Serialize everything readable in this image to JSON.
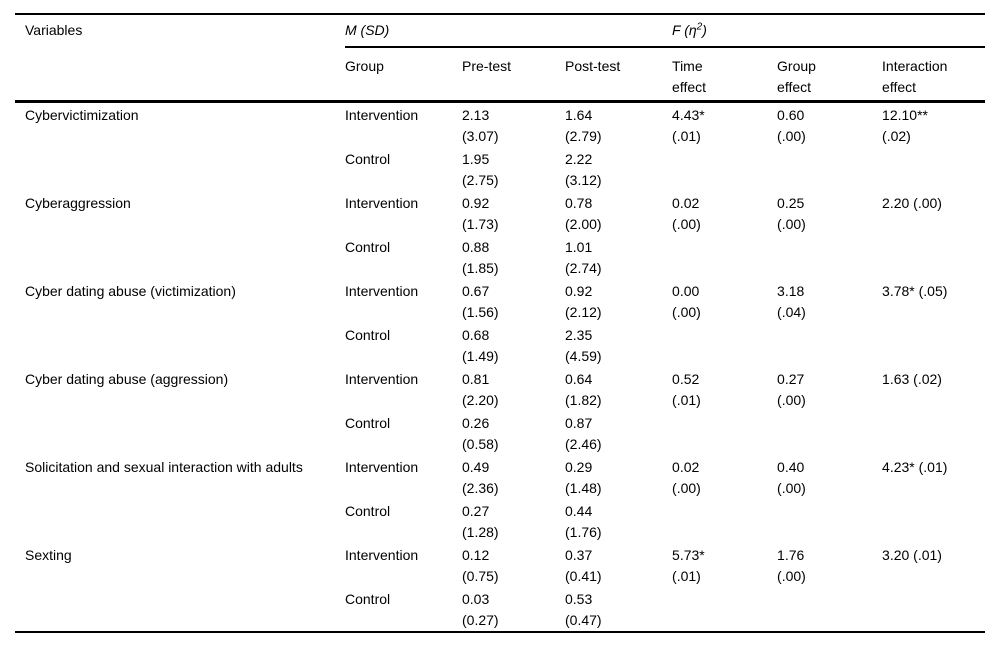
{
  "page": {
    "background": "#ffffff",
    "text_color": "#000000"
  },
  "table": {
    "variables_header": "Variables",
    "msd_header": "M (SD)",
    "f_header": {
      "pre": "F (η",
      "sup": "2",
      "post": ")"
    },
    "sub_headers": [
      {
        "line1": "Group",
        "line2": ""
      },
      {
        "line1": "Pre-test",
        "line2": ""
      },
      {
        "line1": "Post-test",
        "line2": ""
      },
      {
        "line1": "Time",
        "line2": "effect"
      },
      {
        "line1": "Group",
        "line2": "effect"
      },
      {
        "line1": "Interaction",
        "line2": "effect"
      }
    ],
    "rows": [
      {
        "variable": "Cybervictimization",
        "intervention": {
          "label": "Intervention",
          "pre_m": "2.13",
          "pre_sd": "(3.07)",
          "post_m": "1.64",
          "post_sd": "(2.79)"
        },
        "control": {
          "label": "Control",
          "pre_m": "1.95",
          "pre_sd": "(2.75)",
          "post_m": "2.22",
          "post_sd": "(3.12)"
        },
        "time": {
          "l1": "4.43*",
          "l2": "(.01)"
        },
        "group": {
          "l1": "0.60",
          "l2": "(.00)"
        },
        "interaction": {
          "l1": "12.10**",
          "l2": "(.02)"
        }
      },
      {
        "variable": "Cyberaggression",
        "intervention": {
          "label": "Intervention",
          "pre_m": "0.92",
          "pre_sd": "(1.73)",
          "post_m": "0.78",
          "post_sd": "(2.00)"
        },
        "control": {
          "label": "Control",
          "pre_m": "0.88",
          "pre_sd": "(1.85)",
          "post_m": "1.01",
          "post_sd": "(2.74)"
        },
        "time": {
          "l1": "0.02",
          "l2": "(.00)"
        },
        "group": {
          "l1": "0.25",
          "l2": "(.00)"
        },
        "interaction": {
          "l1": "2.20 (.00)",
          "l2": ""
        }
      },
      {
        "variable": "Cyber dating abuse (victimization)",
        "intervention": {
          "label": "Intervention",
          "pre_m": "0.67",
          "pre_sd": "(1.56)",
          "post_m": "0.92",
          "post_sd": "(2.12)"
        },
        "control": {
          "label": "Control",
          "pre_m": "0.68",
          "pre_sd": "(1.49)",
          "post_m": "2.35",
          "post_sd": "(4.59)"
        },
        "time": {
          "l1": "0.00",
          "l2": "(.00)"
        },
        "group": {
          "l1": "3.18",
          "l2": "(.04)"
        },
        "interaction": {
          "l1": "3.78* (.05)",
          "l2": ""
        }
      },
      {
        "variable": "Cyber dating abuse (aggression)",
        "intervention": {
          "label": "Intervention",
          "pre_m": "0.81",
          "pre_sd": "(2.20)",
          "post_m": "0.64",
          "post_sd": "(1.82)"
        },
        "control": {
          "label": "Control",
          "pre_m": "0.26",
          "pre_sd": "(0.58)",
          "post_m": "0.87",
          "post_sd": "(2.46)"
        },
        "time": {
          "l1": "0.52",
          "l2": "(.01)"
        },
        "group": {
          "l1": "0.27",
          "l2": "(.00)"
        },
        "interaction": {
          "l1": "1.63 (.02)",
          "l2": ""
        }
      },
      {
        "variable": "Solicitation and sexual interaction with adults",
        "intervention": {
          "label": "Intervention",
          "pre_m": "0.49",
          "pre_sd": "(2.36)",
          "post_m": "0.29",
          "post_sd": "(1.48)"
        },
        "control": {
          "label": "Control",
          "pre_m": "0.27",
          "pre_sd": "(1.28)",
          "post_m": "0.44",
          "post_sd": "(1.76)"
        },
        "time": {
          "l1": "0.02",
          "l2": "(.00)"
        },
        "group": {
          "l1": "0.40",
          "l2": "(.00)"
        },
        "interaction": {
          "l1": "4.23* (.01)",
          "l2": ""
        }
      },
      {
        "variable": "Sexting",
        "intervention": {
          "label": "Intervention",
          "pre_m": "0.12",
          "pre_sd": "(0.75)",
          "post_m": "0.37",
          "post_sd": "(0.41)"
        },
        "control": {
          "label": "Control",
          "pre_m": "0.03",
          "pre_sd": "(0.27)",
          "post_m": "0.53",
          "post_sd": "(0.47)"
        },
        "time": {
          "l1": "5.73*",
          "l2": "(.01)"
        },
        "group": {
          "l1": "1.76",
          "l2": "(.00)"
        },
        "interaction": {
          "l1": "3.20 (.01)",
          "l2": ""
        }
      }
    ]
  }
}
